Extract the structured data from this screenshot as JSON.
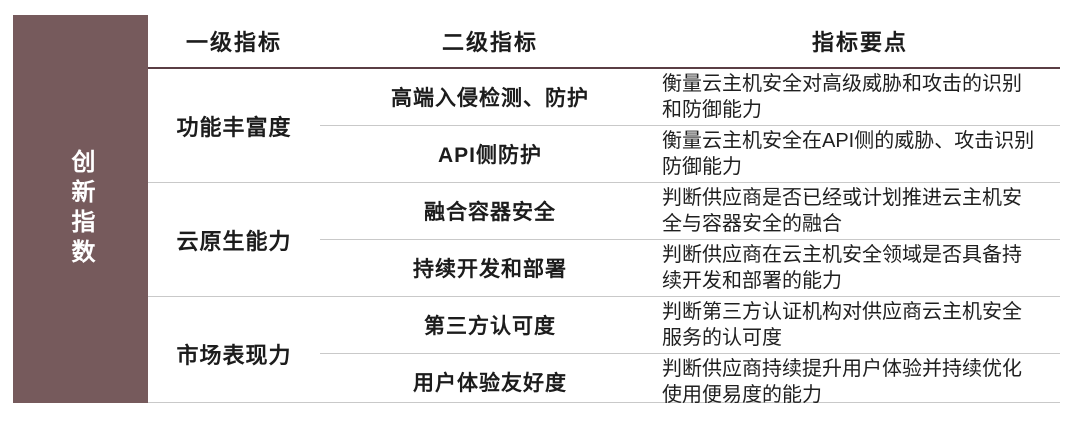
{
  "colors": {
    "sidebar_bg": "#765a5c",
    "sidebar_text": "#ffffff",
    "header_rule": "#5a3e44",
    "divider": "#c9c9c9",
    "text": "#1c1c1c"
  },
  "sidebar": {
    "label": "创新指数"
  },
  "table": {
    "headers": {
      "level1": "一级指标",
      "level2": "二级指标",
      "points": "指标要点"
    },
    "groups": [
      {
        "level1": "功能丰富度",
        "rows": [
          {
            "level2": "高端入侵检测、防护",
            "point": "衡量云主机安全对高级威胁和攻击的识别\n和防御能力"
          },
          {
            "level2": "API侧防护",
            "point": "衡量云主机安全在API侧的威胁、攻击识别\n防御能力"
          }
        ]
      },
      {
        "level1": "云原生能力",
        "rows": [
          {
            "level2": "融合容器安全",
            "point": "判断供应商是否已经或计划推进云主机安\n全与容器安全的融合"
          },
          {
            "level2": "持续开发和部署",
            "point": "判断供应商在云主机安全领域是否具备持\n续开发和部署的能力"
          }
        ]
      },
      {
        "level1": "市场表现力",
        "rows": [
          {
            "level2": "第三方认可度",
            "point": "判断第三方认证机构对供应商云主机安全\n服务的认可度"
          },
          {
            "level2": "用户体验友好度",
            "point": "判断供应商持续提升用户体验并持续优化\n使用便易度的能力"
          }
        ]
      }
    ]
  }
}
